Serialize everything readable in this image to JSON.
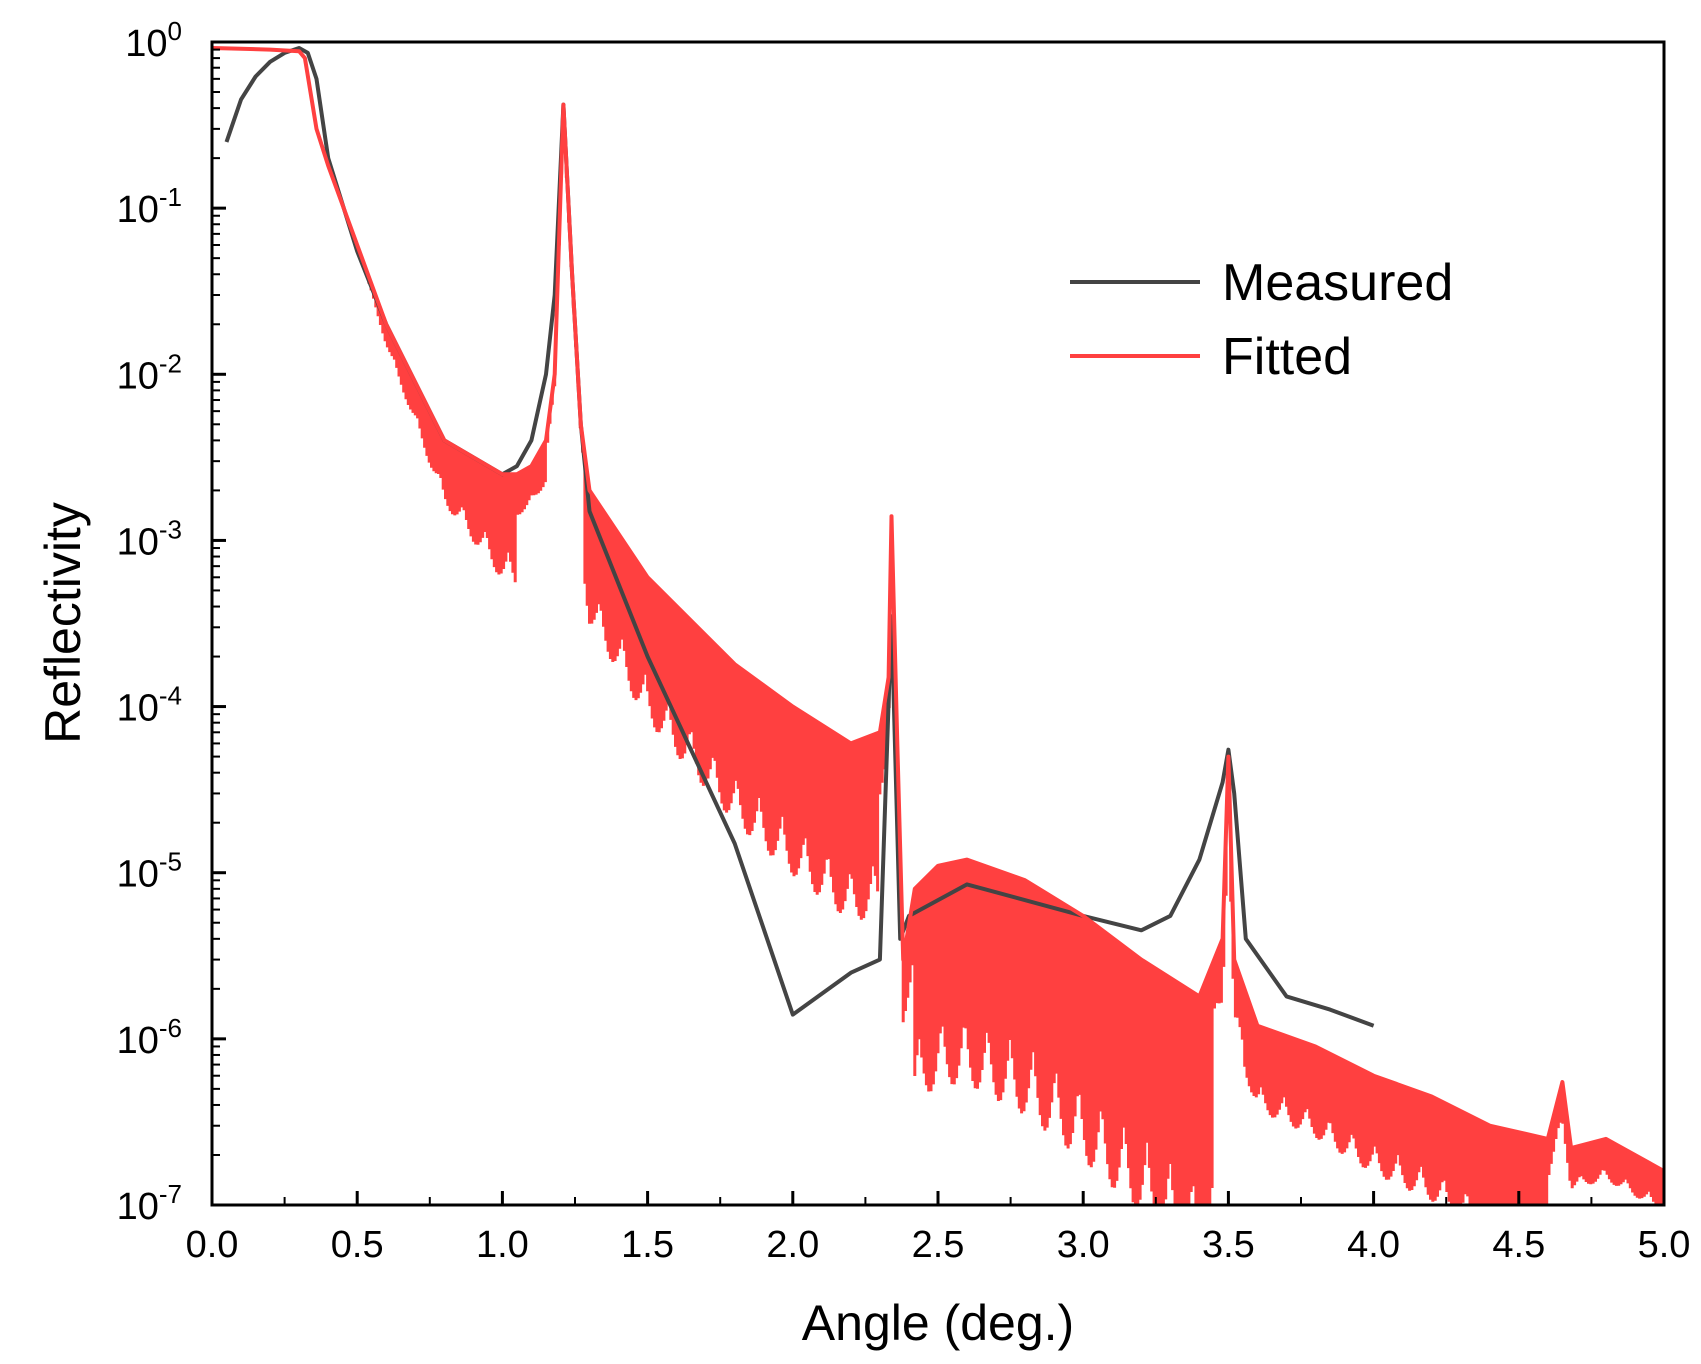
{
  "chart_data": {
    "type": "line",
    "title": "",
    "xlabel": "Angle (deg.)",
    "ylabel": "Reflectivity",
    "xlim": [
      0.0,
      5.0
    ],
    "ylim_log10": [
      -7,
      0
    ],
    "y_scale": "log",
    "grid": false,
    "legend_position": "top-right",
    "x_ticks": [
      "0.0",
      "0.5",
      "1.0",
      "1.5",
      "2.0",
      "2.5",
      "3.0",
      "3.5",
      "4.0",
      "4.5",
      "5.0"
    ],
    "y_ticks": [
      {
        "base": "10",
        "exp": "0"
      },
      {
        "base": "10",
        "exp": "-1"
      },
      {
        "base": "10",
        "exp": "-2"
      },
      {
        "base": "10",
        "exp": "-3"
      },
      {
        "base": "10",
        "exp": "-4"
      },
      {
        "base": "10",
        "exp": "-5"
      },
      {
        "base": "10",
        "exp": "-6"
      },
      {
        "base": "10",
        "exp": "-7"
      }
    ],
    "series": [
      {
        "name": "Measured",
        "color": "#444444",
        "x": [
          0.05,
          0.1,
          0.15,
          0.2,
          0.25,
          0.3,
          0.33,
          0.36,
          0.4,
          0.5,
          0.6,
          0.8,
          1.0,
          1.05,
          1.1,
          1.15,
          1.18,
          1.21,
          1.24,
          1.27,
          1.3,
          1.5,
          1.8,
          2.0,
          2.2,
          2.3,
          2.34,
          2.37,
          2.4,
          2.6,
          3.0,
          3.2,
          3.3,
          3.4,
          3.48,
          3.5,
          3.52,
          3.56,
          3.7,
          3.85,
          4.0
        ],
        "y": [
          0.25,
          0.45,
          0.62,
          0.76,
          0.86,
          0.92,
          0.86,
          0.6,
          0.2,
          0.055,
          0.02,
          0.004,
          0.0025,
          0.0028,
          0.004,
          0.01,
          0.03,
          0.42,
          0.04,
          0.005,
          0.0015,
          0.0002,
          1.5e-05,
          1.4e-06,
          2.5e-06,
          3e-06,
          0.00035,
          4e-06,
          5.5e-06,
          8.5e-06,
          5.5e-06,
          4.5e-06,
          5.5e-06,
          1.2e-05,
          3.5e-05,
          5.5e-05,
          3e-05,
          4e-06,
          1.8e-06,
          1.5e-06,
          1.2e-06
        ]
      },
      {
        "name": "Fitted",
        "color": "#ff4040",
        "x": [
          0.0,
          0.1,
          0.2,
          0.3,
          0.32,
          0.36,
          0.4,
          0.5,
          0.6,
          0.8,
          1.0,
          1.05,
          1.1,
          1.15,
          1.18,
          1.21,
          1.24,
          1.27,
          1.3,
          1.5,
          1.8,
          2.0,
          2.2,
          2.3,
          2.33,
          2.34,
          2.36,
          2.38,
          2.42,
          2.5,
          2.6,
          2.8,
          3.0,
          3.2,
          3.4,
          3.48,
          3.5,
          3.52,
          3.6,
          3.8,
          4.0,
          4.2,
          4.4,
          4.6,
          4.65,
          4.68,
          4.8,
          5.0
        ],
        "y": [
          0.92,
          0.91,
          0.9,
          0.88,
          0.8,
          0.3,
          0.18,
          0.06,
          0.02,
          0.004,
          0.0025,
          0.0025,
          0.0028,
          0.004,
          0.01,
          0.42,
          0.04,
          0.005,
          0.002,
          0.0006,
          0.00018,
          0.0001,
          6e-05,
          7e-05,
          0.00015,
          0.0014,
          6e-05,
          3e-06,
          8e-06,
          1.1e-05,
          1.2e-05,
          9e-06,
          5.5e-06,
          3e-06,
          1.8e-06,
          4e-06,
          5e-05,
          3e-06,
          1.2e-06,
          9e-07,
          6e-07,
          4.5e-07,
          3e-07,
          2.5e-07,
          5.5e-07,
          2.2e-07,
          2.5e-07,
          1.6e-07
        ]
      }
    ]
  }
}
